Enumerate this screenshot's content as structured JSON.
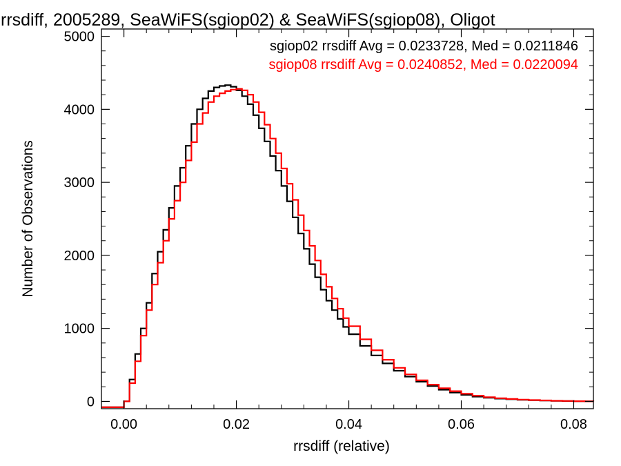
{
  "chart_data": {
    "type": "line",
    "title": "rrsdiff, 2005289, SeaWiFS(sgiop02) & SeaWiFS(sgiop08), Oligot",
    "xlabel": "rrsdiff (relative)",
    "ylabel": "Number of Observations",
    "xlim": [
      -0.004,
      0.0835
    ],
    "ylim": [
      -100,
      5100
    ],
    "x_ticks": [
      0.0,
      0.02,
      0.04,
      0.06,
      0.08
    ],
    "x_tick_labels": [
      "0.00",
      "0.02",
      "0.04",
      "0.06",
      "0.08"
    ],
    "y_ticks": [
      0,
      1000,
      2000,
      3000,
      4000,
      5000
    ],
    "y_tick_labels": [
      "0",
      "1000",
      "2000",
      "3000",
      "4000",
      "5000"
    ],
    "grid": false,
    "legend_position": "top-right",
    "series": [
      {
        "name": "sgiop02",
        "color": "#000000",
        "legend_text": "sgiop02 rrsdiff Avg = 0.0233728, Med = 0.0211846",
        "x": [
          -0.004,
          -0.0005,
          0.0,
          0.001,
          0.002,
          0.003,
          0.004,
          0.005,
          0.006,
          0.007,
          0.008,
          0.009,
          0.01,
          0.011,
          0.012,
          0.013,
          0.014,
          0.015,
          0.016,
          0.017,
          0.018,
          0.019,
          0.02,
          0.021,
          0.022,
          0.023,
          0.024,
          0.025,
          0.026,
          0.027,
          0.028,
          0.029,
          0.03,
          0.031,
          0.032,
          0.033,
          0.034,
          0.035,
          0.036,
          0.037,
          0.038,
          0.039,
          0.04,
          0.042,
          0.044,
          0.046,
          0.048,
          0.05,
          0.052,
          0.054,
          0.056,
          0.058,
          0.06,
          0.062,
          0.064,
          0.066,
          0.068,
          0.07,
          0.072,
          0.074,
          0.076,
          0.078,
          0.08,
          0.082,
          0.0835
        ],
        "y": [
          -80,
          -80,
          0,
          300,
          650,
          1000,
          1350,
          1750,
          2050,
          2350,
          2650,
          2950,
          3200,
          3500,
          3800,
          4000,
          4150,
          4250,
          4300,
          4320,
          4330,
          4310,
          4260,
          4180,
          4070,
          3920,
          3740,
          3560,
          3360,
          3160,
          2950,
          2740,
          2520,
          2300,
          2090,
          1880,
          1700,
          1530,
          1380,
          1250,
          1130,
          1020,
          920,
          760,
          630,
          520,
          420,
          340,
          270,
          210,
          160,
          120,
          90,
          65,
          50,
          38,
          30,
          22,
          16,
          12,
          8,
          5,
          3,
          1,
          0
        ]
      },
      {
        "name": "sgiop08",
        "color": "#ff0000",
        "legend_text": "sgiop08 rrsdiff Avg = 0.0240852, Med = 0.0220094",
        "x": [
          -0.004,
          -0.0005,
          0.0,
          0.001,
          0.002,
          0.003,
          0.004,
          0.005,
          0.006,
          0.007,
          0.008,
          0.009,
          0.01,
          0.011,
          0.012,
          0.013,
          0.014,
          0.015,
          0.016,
          0.017,
          0.018,
          0.019,
          0.02,
          0.021,
          0.022,
          0.023,
          0.024,
          0.025,
          0.026,
          0.027,
          0.028,
          0.029,
          0.03,
          0.031,
          0.032,
          0.033,
          0.034,
          0.035,
          0.036,
          0.037,
          0.038,
          0.039,
          0.04,
          0.042,
          0.044,
          0.046,
          0.048,
          0.05,
          0.052,
          0.054,
          0.056,
          0.058,
          0.06,
          0.062,
          0.064,
          0.066,
          0.068,
          0.07,
          0.072,
          0.074,
          0.076,
          0.078,
          0.08,
          0.082,
          0.0835
        ],
        "y": [
          -80,
          -80,
          0,
          250,
          550,
          900,
          1250,
          1600,
          1900,
          2200,
          2500,
          2750,
          3000,
          3300,
          3550,
          3800,
          3950,
          4100,
          4180,
          4220,
          4250,
          4270,
          4280,
          4260,
          4200,
          4100,
          3960,
          3790,
          3600,
          3400,
          3190,
          2980,
          2760,
          2550,
          2340,
          2130,
          1930,
          1740,
          1570,
          1410,
          1270,
          1140,
          1030,
          850,
          700,
          570,
          460,
          370,
          290,
          230,
          180,
          140,
          105,
          78,
          58,
          44,
          33,
          25,
          18,
          13,
          9,
          6,
          3,
          1,
          0
        ]
      }
    ]
  }
}
